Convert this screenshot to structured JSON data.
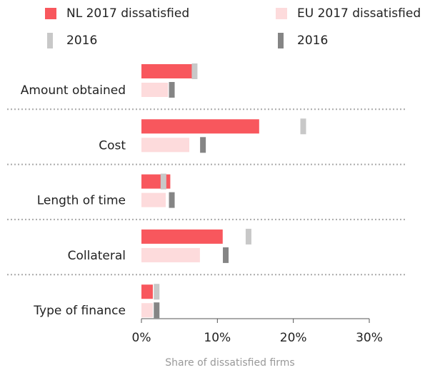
{
  "chart_data": {
    "type": "hbar",
    "categories": [
      "Amount obtained",
      "Cost",
      "Length of time",
      "Collateral",
      "Type of finance"
    ],
    "series": [
      {
        "name": "NL 2017 dissatisfied",
        "color": "#f8575d",
        "values": [
          6.7,
          15.5,
          3.8,
          10.7,
          1.5
        ]
      },
      {
        "name": "EU 2017 dissatisfied",
        "color": "#fddbdc",
        "values": [
          3.5,
          6.3,
          3.2,
          7.7,
          1.5
        ]
      },
      {
        "name": "2016",
        "color": "#c8c8c8",
        "values": [
          7.0,
          21.3,
          2.9,
          14.1,
          2.0
        ]
      },
      {
        "name": "2016",
        "color": "#858585",
        "values": [
          4.0,
          8.1,
          4.0,
          11.1,
          2.0
        ]
      }
    ],
    "xlim": [
      0,
      30
    ],
    "xticks": [
      {
        "value": 0,
        "label": "0%"
      },
      {
        "value": 10,
        "label": "10%"
      },
      {
        "value": 20,
        "label": "20%"
      },
      {
        "value": 30,
        "label": "30%"
      }
    ],
    "xlabel": "Share of dissatisfied firms"
  }
}
